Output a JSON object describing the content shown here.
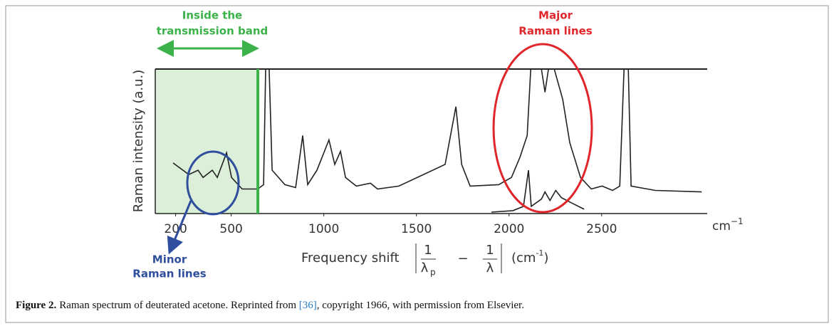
{
  "chart_data": {
    "type": "line",
    "y_label": "Raman intensity (a.u.)",
    "x_unit": {
      "base": "cm",
      "exp": "−1"
    },
    "x_label": {
      "text": "Frequency shift",
      "numerator": "1",
      "lambda": "λ",
      "sub": "p",
      "minus": "−",
      "unit_open": "(cm",
      "unit_exp": "-1",
      "unit_close": ")"
    },
    "xlim": [
      90,
      3070
    ],
    "ylim": [
      0,
      1
    ],
    "xticks": [
      200,
      500,
      1000,
      1500,
      2000,
      2500
    ],
    "band_edge": 644,
    "annotations": {
      "band": [
        "Inside the",
        "transmission band"
      ],
      "major": [
        "Major",
        "Raman lines"
      ],
      "minor": [
        "Minor",
        "Raman lines"
      ]
    },
    "series": [
      {
        "color": "#222222",
        "x": [
          186,
          271,
          321,
          348,
          398,
          425,
          475,
          502,
          559,
          644,
          675,
          686,
          705,
          721,
          790,
          848,
          886,
          913,
          963,
          1028,
          1059,
          1090,
          1117,
          1175,
          1252,
          1290,
          1405,
          1655,
          1713,
          1744,
          1790,
          1944,
          2013,
          2059,
          2098,
          2117,
          2144,
          2175,
          2194,
          2213,
          2244,
          2290,
          2328,
          2386,
          2444,
          2502,
          2559,
          2598,
          2621,
          2644,
          2659,
          2790,
          3040
        ],
        "values": [
          0.35,
          0.27,
          0.3,
          0.25,
          0.3,
          0.25,
          0.42,
          0.25,
          0.17,
          0.17,
          0.2,
          1.0,
          1.0,
          0.3,
          0.2,
          0.18,
          0.54,
          0.2,
          0.3,
          0.51,
          0.34,
          0.43,
          0.25,
          0.19,
          0.21,
          0.17,
          0.19,
          0.34,
          0.74,
          0.34,
          0.19,
          0.2,
          0.25,
          0.39,
          0.54,
          1.0,
          1.0,
          1.0,
          0.84,
          1.0,
          1.0,
          0.79,
          0.49,
          0.25,
          0.17,
          0.19,
          0.16,
          0.19,
          1.0,
          1.0,
          0.19,
          0.16,
          0.15
        ]
      },
      {
        "color": "#222222",
        "x": [
          1905,
          2021,
          2078,
          2105,
          2120,
          2175,
          2194,
          2221,
          2252,
          2283,
          2328,
          2405
        ],
        "values": [
          0.01,
          0.02,
          0.05,
          0.3,
          0.05,
          0.1,
          0.15,
          0.09,
          0.16,
          0.11,
          0.08,
          0.03
        ]
      }
    ]
  },
  "caption": {
    "label": "Figure 2.",
    "text": "Raman spectrum of deuterated acetone. Reprinted from ",
    "ref": "[36]",
    "rest": ", copyright 1966, with permission from Elsevier."
  }
}
